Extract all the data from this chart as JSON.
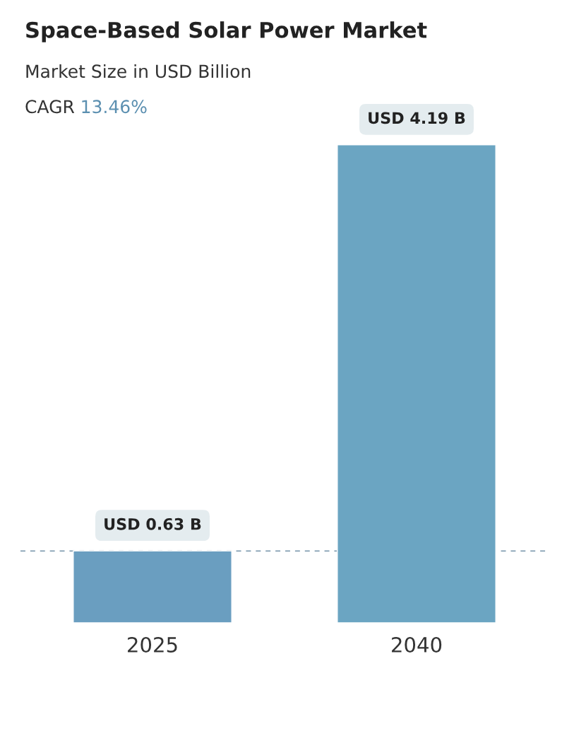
{
  "chart_data": {
    "type": "bar",
    "title": "Space-Based Solar Power Market",
    "subtitle": "Market Size in USD Billion",
    "annotations": [
      "CAGR 13.46%"
    ],
    "categories": [
      "2025",
      "2040"
    ],
    "values": [
      0.63,
      4.19
    ],
    "colors": [
      "#6a9ec0",
      "#6ba5c2"
    ],
    "value_labels": [
      "USD 0.63 B",
      "USD 4.19 B"
    ],
    "ref_lines": [
      {
        "axis": "y",
        "value": 0.63,
        "color": "#5b7f99",
        "line_style": "dashed"
      }
    ],
    "grid": false,
    "legend": false
  }
}
